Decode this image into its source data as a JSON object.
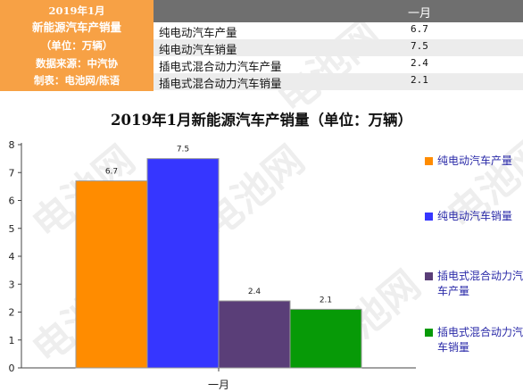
{
  "info": {
    "lines": [
      "2019年1月",
      "新能源汽车产销量",
      "（单位：万辆）",
      "数据来源：中汽协",
      "制表：电池网/陈语"
    ],
    "column_header": "一月",
    "rows": [
      {
        "name": "纯电动汽车产量",
        "value": "6.7"
      },
      {
        "name": "纯电动汽车销量",
        "value": "7.5"
      },
      {
        "name": "插电式混合动力汽车产量",
        "value": "2.4"
      },
      {
        "name": "插电式混合动力汽车销量",
        "value": "2.1"
      }
    ]
  },
  "watermark": "电池网",
  "chart_data": {
    "type": "bar",
    "title": "2019年1月新能源汽车产销量（单位：万辆）",
    "categories": [
      "一月"
    ],
    "series": [
      {
        "name": "纯电动汽车产量",
        "values": [
          6.7
        ],
        "color": "#ff8c00"
      },
      {
        "name": "纯电动汽车销量",
        "values": [
          7.5
        ],
        "color": "#3636ff"
      },
      {
        "name": "插电式混合动力汽车产量",
        "values": [
          2.4
        ],
        "color": "#5a3e78"
      },
      {
        "name": "插电式混合动力汽车销量",
        "values": [
          2.1
        ],
        "color": "#079a07"
      }
    ],
    "ylim": [
      0,
      8
    ],
    "yticks": [
      0,
      1,
      2,
      3,
      4,
      5,
      6,
      7,
      8
    ],
    "xlabel": "",
    "ylabel": "",
    "grid": false,
    "legend": "right"
  }
}
